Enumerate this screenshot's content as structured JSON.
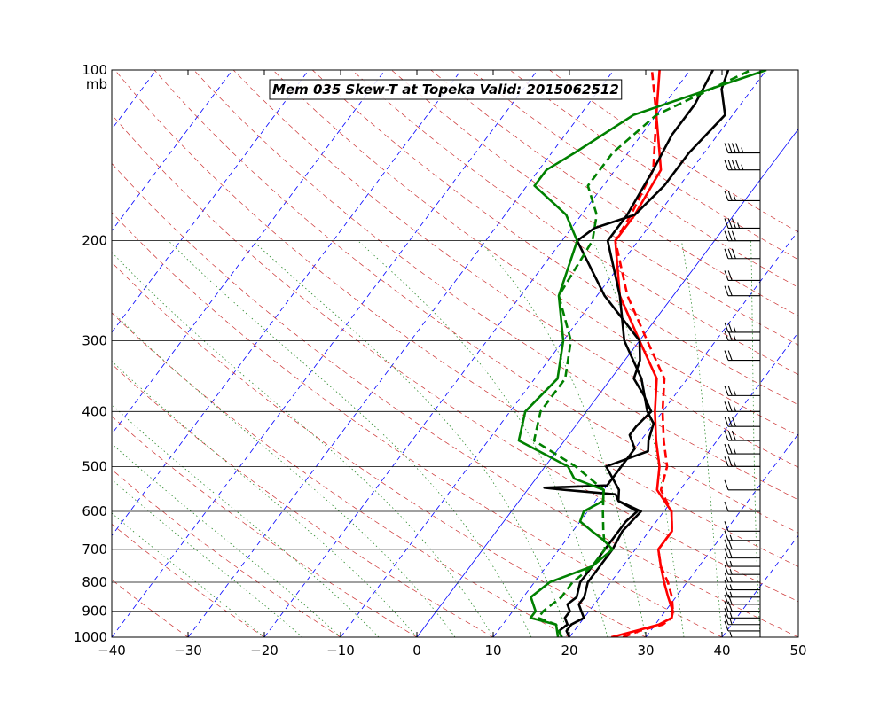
{
  "chart_data": {
    "type": "line",
    "title": "Mem 035  Skew-T at Topeka   Valid: 2015062512",
    "pressure_unit": "mb",
    "xlim": [
      -40,
      50
    ],
    "ylim": [
      1000,
      100
    ],
    "y_scale": "log",
    "xticks": [
      -40,
      -30,
      -20,
      -10,
      0,
      10,
      20,
      30,
      40,
      50
    ],
    "pressure_levels": [
      100,
      200,
      300,
      400,
      500,
      600,
      700,
      800,
      900,
      1000
    ],
    "colors": {
      "temperature": "#ff0000",
      "dewpoint": "#008000",
      "sounding": "#000000",
      "isotherm": "#0000ff",
      "dry_adiabat": "#cc3333",
      "moist_adiabat": "#2e8b2e",
      "mixing_ratio": "#cc3333"
    },
    "series": [
      {
        "style": "solid",
        "color": "#ff0000",
        "points": [
          [
            1000,
            25.5
          ],
          [
            975,
            28
          ],
          [
            950,
            30.5
          ],
          [
            925,
            31.5
          ],
          [
            900,
            31
          ],
          [
            850,
            29
          ],
          [
            800,
            27
          ],
          [
            750,
            25
          ],
          [
            700,
            23
          ],
          [
            650,
            23
          ],
          [
            600,
            21
          ],
          [
            550,
            17
          ],
          [
            500,
            15
          ],
          [
            450,
            12
          ],
          [
            400,
            9
          ],
          [
            350,
            6
          ],
          [
            300,
            0
          ],
          [
            250,
            -7
          ],
          [
            200,
            -13
          ],
          [
            180,
            -13
          ],
          [
            150,
            -14
          ],
          [
            120,
            -20
          ],
          [
            100,
            -24
          ]
        ]
      },
      {
        "style": "dashed",
        "color": "#ff0000",
        "points": [
          [
            1000,
            27
          ],
          [
            975,
            28.5
          ],
          [
            950,
            31
          ],
          [
            925,
            31.5
          ],
          [
            900,
            31
          ],
          [
            850,
            29.5
          ],
          [
            800,
            27.5
          ],
          [
            750,
            25
          ],
          [
            700,
            23
          ],
          [
            650,
            23
          ],
          [
            600,
            21
          ],
          [
            550,
            17.5
          ],
          [
            500,
            16
          ],
          [
            450,
            13
          ],
          [
            400,
            10
          ],
          [
            350,
            7
          ],
          [
            300,
            1
          ],
          [
            250,
            -6
          ],
          [
            200,
            -13
          ],
          [
            180,
            -13.5
          ],
          [
            150,
            -15
          ],
          [
            120,
            -20
          ],
          [
            100,
            -25
          ]
        ]
      },
      {
        "style": "solid",
        "color": "#000000",
        "points": [
          [
            1000,
            19
          ],
          [
            975,
            18
          ],
          [
            950,
            18.5
          ],
          [
            925,
            17.5
          ],
          [
            900,
            17.5
          ],
          [
            875,
            16.5
          ],
          [
            850,
            17
          ],
          [
            800,
            16
          ],
          [
            750,
            16
          ],
          [
            700,
            16
          ],
          [
            650,
            16
          ],
          [
            625,
            16
          ],
          [
            600,
            16.5
          ],
          [
            575,
            13
          ],
          [
            550,
            12
          ],
          [
            500,
            8
          ],
          [
            470,
            12
          ],
          [
            450,
            11
          ],
          [
            420,
            10
          ],
          [
            400,
            8
          ],
          [
            350,
            4
          ],
          [
            300,
            -2
          ],
          [
            250,
            -7
          ],
          [
            200,
            -14
          ],
          [
            180,
            -14
          ],
          [
            150,
            -15
          ],
          [
            130,
            -16
          ],
          [
            115,
            -16
          ],
          [
            100,
            -17
          ]
        ]
      },
      {
        "style": "solid",
        "color": "#000000",
        "points": [
          [
            1000,
            20
          ],
          [
            975,
            19
          ],
          [
            950,
            19
          ],
          [
            925,
            20
          ],
          [
            900,
            19
          ],
          [
            875,
            18
          ],
          [
            850,
            18
          ],
          [
            800,
            17
          ],
          [
            750,
            17
          ],
          [
            700,
            17
          ],
          [
            650,
            16.5
          ],
          [
            600,
            17
          ],
          [
            575,
            13
          ],
          [
            560,
            12
          ],
          [
            550,
            5
          ],
          [
            545,
            2
          ],
          [
            540,
            10
          ],
          [
            500,
            10
          ],
          [
            465,
            10
          ],
          [
            440,
            8
          ],
          [
            425,
            8
          ],
          [
            400,
            8.5
          ],
          [
            375,
            6
          ],
          [
            350,
            3
          ],
          [
            325,
            2
          ],
          [
            300,
            0
          ],
          [
            250,
            -9
          ],
          [
            200,
            -18
          ],
          [
            190,
            -17
          ],
          [
            180,
            -13
          ],
          [
            160,
            -12
          ],
          [
            140,
            -12
          ],
          [
            120,
            -11
          ],
          [
            108,
            -14
          ],
          [
            100,
            -15
          ]
        ]
      },
      {
        "style": "solid",
        "color": "#008000",
        "points": [
          [
            1000,
            18.5
          ],
          [
            950,
            17
          ],
          [
            925,
            13
          ],
          [
            900,
            13
          ],
          [
            850,
            11
          ],
          [
            800,
            12
          ],
          [
            750,
            16
          ],
          [
            700,
            17
          ],
          [
            675,
            15
          ],
          [
            650,
            12.5
          ],
          [
            625,
            10
          ],
          [
            600,
            9.5
          ],
          [
            575,
            11
          ],
          [
            550,
            10
          ],
          [
            525,
            5
          ],
          [
            500,
            3
          ],
          [
            450,
            -6
          ],
          [
            400,
            -8
          ],
          [
            350,
            -7
          ],
          [
            300,
            -10
          ],
          [
            250,
            -15
          ],
          [
            200,
            -18
          ],
          [
            180,
            -22
          ],
          [
            160,
            -29
          ],
          [
            150,
            -29
          ],
          [
            140,
            -27
          ],
          [
            120,
            -23
          ],
          [
            100,
            -10
          ]
        ]
      },
      {
        "style": "dashed",
        "color": "#008000",
        "points": [
          [
            1000,
            19
          ],
          [
            950,
            17
          ],
          [
            925,
            14
          ],
          [
            900,
            14
          ],
          [
            850,
            15
          ],
          [
            800,
            15
          ],
          [
            750,
            16
          ],
          [
            700,
            16
          ],
          [
            650,
            14
          ],
          [
            600,
            12
          ],
          [
            550,
            10
          ],
          [
            500,
            4
          ],
          [
            450,
            -4
          ],
          [
            400,
            -6
          ],
          [
            350,
            -6
          ],
          [
            300,
            -9
          ],
          [
            250,
            -15
          ],
          [
            200,
            -16
          ],
          [
            180,
            -18
          ],
          [
            160,
            -22
          ],
          [
            140,
            -22
          ],
          [
            120,
            -20
          ],
          [
            100,
            -12
          ]
        ]
      }
    ],
    "wind_barbs": [
      {
        "p": 1000,
        "spd": 5
      },
      {
        "p": 975,
        "spd": 10
      },
      {
        "p": 950,
        "spd": 15
      },
      {
        "p": 925,
        "spd": 15
      },
      {
        "p": 900,
        "spd": 20
      },
      {
        "p": 875,
        "spd": 20
      },
      {
        "p": 850,
        "spd": 15
      },
      {
        "p": 825,
        "spd": 15
      },
      {
        "p": 800,
        "spd": 15
      },
      {
        "p": 775,
        "spd": 15
      },
      {
        "p": 750,
        "spd": 15
      },
      {
        "p": 725,
        "spd": 20
      },
      {
        "p": 700,
        "spd": 20
      },
      {
        "p": 675,
        "spd": 15
      },
      {
        "p": 650,
        "spd": 10
      },
      {
        "p": 600,
        "spd": 10
      },
      {
        "p": 550,
        "spd": 10
      },
      {
        "p": 500,
        "spd": 25
      },
      {
        "p": 475,
        "spd": 25
      },
      {
        "p": 450,
        "spd": 30
      },
      {
        "p": 425,
        "spd": 30
      },
      {
        "p": 400,
        "spd": 25
      },
      {
        "p": 375,
        "spd": 25
      },
      {
        "p": 325,
        "spd": 20
      },
      {
        "p": 300,
        "spd": 25
      },
      {
        "p": 290,
        "spd": 25
      },
      {
        "p": 250,
        "spd": 20
      },
      {
        "p": 235,
        "spd": 20
      },
      {
        "p": 215,
        "spd": 30
      },
      {
        "p": 200,
        "spd": 30
      },
      {
        "p": 190,
        "spd": 35
      },
      {
        "p": 170,
        "spd": 25
      },
      {
        "p": 150,
        "spd": 45
      },
      {
        "p": 140,
        "spd": 45
      }
    ]
  }
}
